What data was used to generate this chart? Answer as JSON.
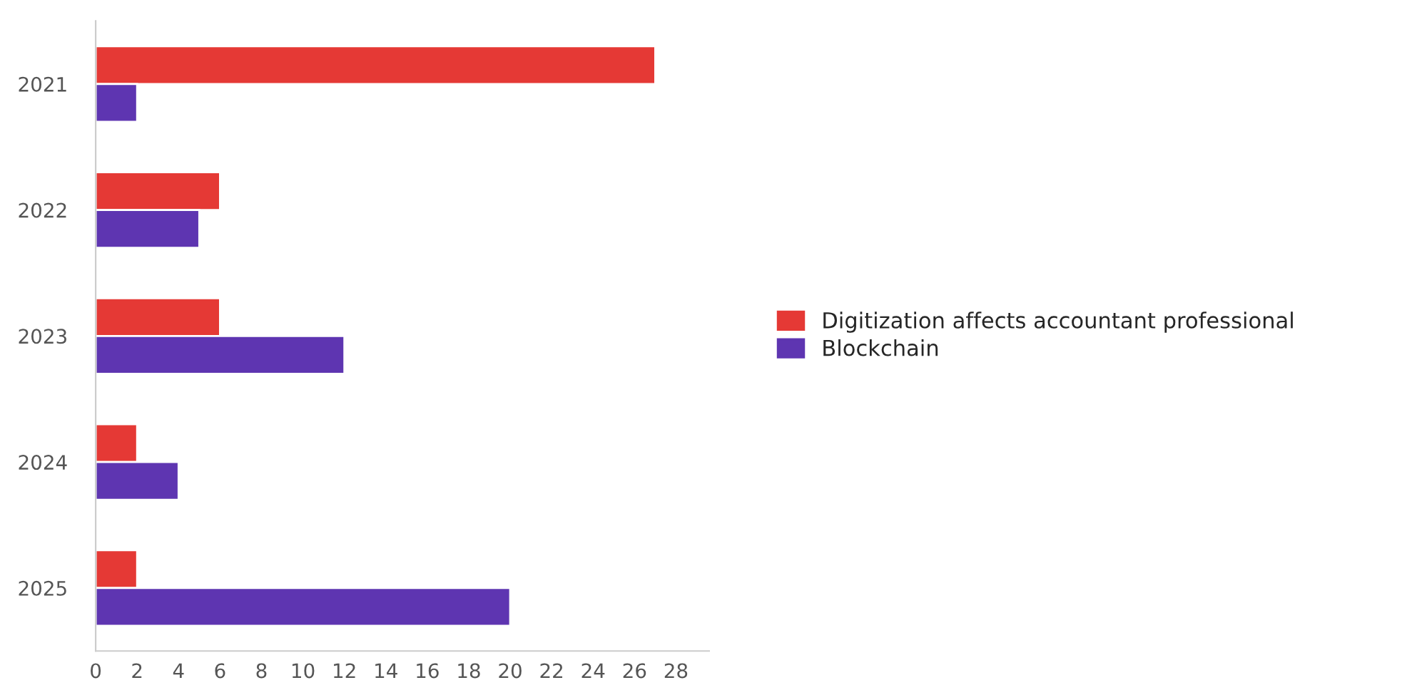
{
  "chart_data": {
    "type": "bar",
    "orientation": "horizontal",
    "categories": [
      "2021",
      "2022",
      "2023",
      "2024",
      "2025"
    ],
    "series": [
      {
        "name": "Digitization affects accountant professional",
        "color": "#e53935",
        "values": [
          27,
          6,
          6,
          2,
          2
        ]
      },
      {
        "name": "Blockchain",
        "color": "#5e35b1",
        "values": [
          2,
          5,
          12,
          4,
          20
        ]
      }
    ],
    "xlim": [
      0,
      29.6
    ],
    "xticks": [
      0,
      2,
      4,
      6,
      8,
      10,
      12,
      14,
      16,
      18,
      20,
      22,
      24,
      26,
      28
    ],
    "grid": false,
    "legend": "right"
  }
}
